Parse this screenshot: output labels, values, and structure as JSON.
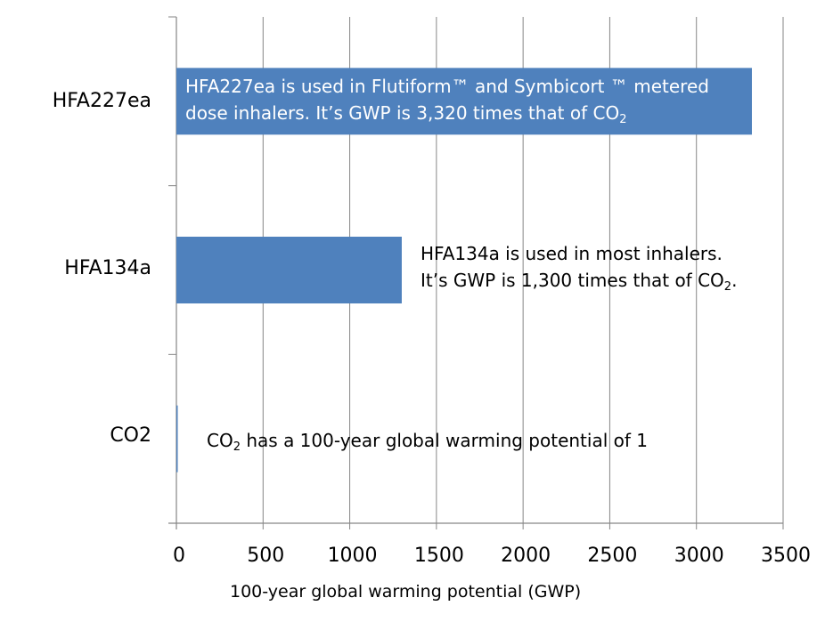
{
  "chart_data": {
    "type": "bar",
    "orientation": "horizontal",
    "title": "",
    "categories": [
      "HFA227ea",
      "HFA134a",
      "CO2"
    ],
    "values": [
      3320,
      1300,
      1
    ],
    "xlabel": "100-year global warming potential (GWP)",
    "ylabel": "",
    "xlim": [
      0,
      3500
    ],
    "xticks": [
      "0",
      "500",
      "1000",
      "1500",
      "2000",
      "2500",
      "3000",
      "3500"
    ],
    "grid": true,
    "bar_color": "#4F81BD",
    "annotations": [
      {
        "category": "HFA227ea",
        "lines": [
          [
            "HFA227ea is used in Flutiform™ and Symbicort ™ metered"
          ],
          [
            "dose inhalers. It’s GWP is 3,320 times that of CO",
            "2",
            ""
          ]
        ]
      },
      {
        "category": "HFA134a",
        "lines": [
          [
            "HFA134a is used in most inhalers."
          ],
          [
            "It’s GWP is 1,300 times that of CO",
            "2",
            "."
          ]
        ]
      },
      {
        "category": "CO2",
        "lines": [
          [
            "CO",
            "2",
            " has a 100-year global warming potential of 1"
          ]
        ]
      }
    ]
  }
}
